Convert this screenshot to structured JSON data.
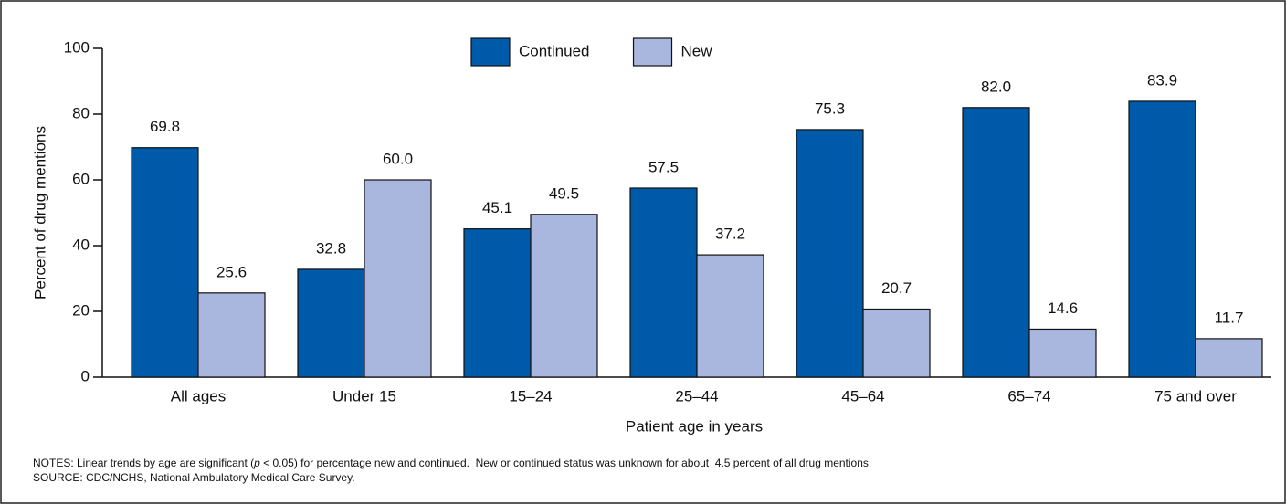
{
  "chart_data": {
    "type": "bar",
    "categories": [
      "All ages",
      "Under 15",
      "15–24",
      "25–44",
      "45–64",
      "65–74",
      "75 and over"
    ],
    "series": [
      {
        "name": "Continued",
        "color": "#005aaa",
        "values": [
          69.8,
          32.8,
          45.1,
          57.5,
          75.3,
          82.0,
          83.9
        ],
        "value_labels": [
          "69.8",
          "32.8",
          "45.1",
          "57.5",
          "75.3",
          "82.0",
          "83.9"
        ]
      },
      {
        "name": "New",
        "color": "#a9b6de",
        "values": [
          25.6,
          60.0,
          49.5,
          37.2,
          20.7,
          14.6,
          11.7
        ],
        "value_labels": [
          "25.6",
          "60.0",
          "49.5",
          "37.2",
          "20.7",
          "14.6",
          "11.7"
        ]
      }
    ],
    "ylim": [
      0,
      100
    ],
    "yticks": [
      0,
      20,
      40,
      60,
      80,
      100
    ],
    "ylabel": "Percent of drug mentions",
    "xlabel": "Patient age in years",
    "notes": [
      "NOTES: Linear trends by age are significant (",
      "p",
      " < 0.05) for percentage new and continued.  New or continued status was unknown for about  4.5 percent of all drug mentions."
    ],
    "source": "SOURCE: CDC/NCHS, National Ambulatory Medical Care Survey.",
    "legend": "top"
  }
}
